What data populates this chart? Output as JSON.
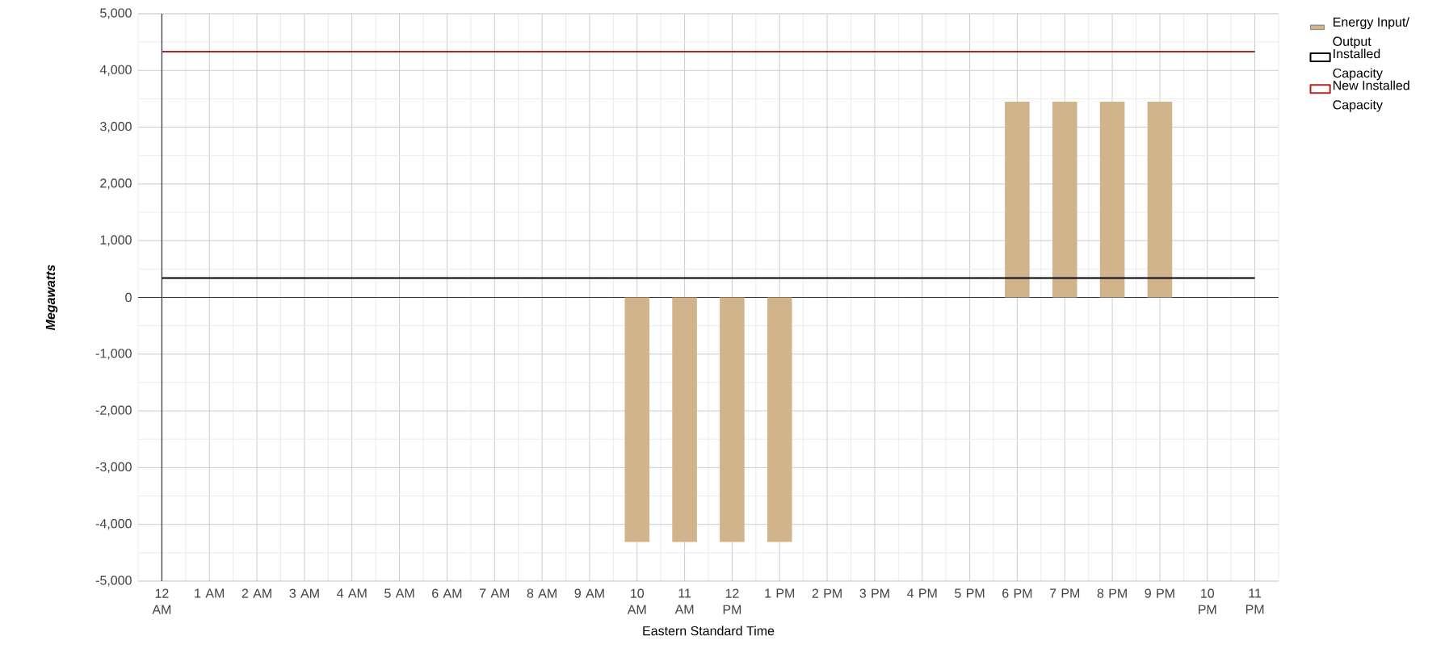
{
  "chart_data": {
    "type": "bar",
    "xlabel": "Eastern Standard Time",
    "ylabel": "Megawatts",
    "categories": [
      "12 AM",
      "1 AM",
      "2 AM",
      "3 AM",
      "4 AM",
      "5 AM",
      "6 AM",
      "7 AM",
      "8 AM",
      "9 AM",
      "10 AM",
      "11 AM",
      "12 PM",
      "1 PM",
      "2 PM",
      "3 PM",
      "4 PM",
      "5 PM",
      "6 PM",
      "7 PM",
      "8 PM",
      "9 PM",
      "10 PM",
      "11 PM"
    ],
    "series": [
      {
        "name": "Energy Input/ Output",
        "color": "#d2b48c",
        "values": [
          0,
          0,
          0,
          0,
          0,
          0,
          0,
          0,
          0,
          0,
          -4310,
          -4310,
          -4310,
          -4310,
          0,
          0,
          0,
          0,
          3450,
          3450,
          3450,
          3450,
          0,
          0
        ]
      },
      {
        "name": "Installed Capacity",
        "type": "line",
        "color": "#000000",
        "values": [
          340,
          340,
          340,
          340,
          340,
          340,
          340,
          340,
          340,
          340,
          340,
          340,
          340,
          340,
          340,
          340,
          340,
          340,
          340,
          340,
          340,
          340,
          340,
          340
        ]
      },
      {
        "name": "New Installed Capacity",
        "type": "line",
        "color": "#b22222",
        "values": [
          4330,
          4330,
          4330,
          4330,
          4330,
          4330,
          4330,
          4330,
          4330,
          4330,
          4330,
          4330,
          4330,
          4330,
          4330,
          4330,
          4330,
          4330,
          4330,
          4330,
          4330,
          4330,
          4330,
          4330
        ]
      }
    ],
    "ylim": [
      -5000,
      5000
    ],
    "yticks": [
      {
        "value": -5000,
        "label": "-5,000"
      },
      {
        "value": -4000,
        "label": "-4,000"
      },
      {
        "value": -3000,
        "label": "-3,000"
      },
      {
        "value": -2000,
        "label": "-2,000"
      },
      {
        "value": -1000,
        "label": "-1,000"
      },
      0,
      {
        "value": 1000,
        "label": "1,000"
      },
      {
        "value": 2000,
        "label": "2,000"
      },
      {
        "value": 3000,
        "label": "3,000"
      },
      {
        "value": 4000,
        "label": "4,000"
      },
      {
        "value": 5000,
        "label": "5,000"
      }
    ],
    "grid": true,
    "legend": "top right"
  }
}
